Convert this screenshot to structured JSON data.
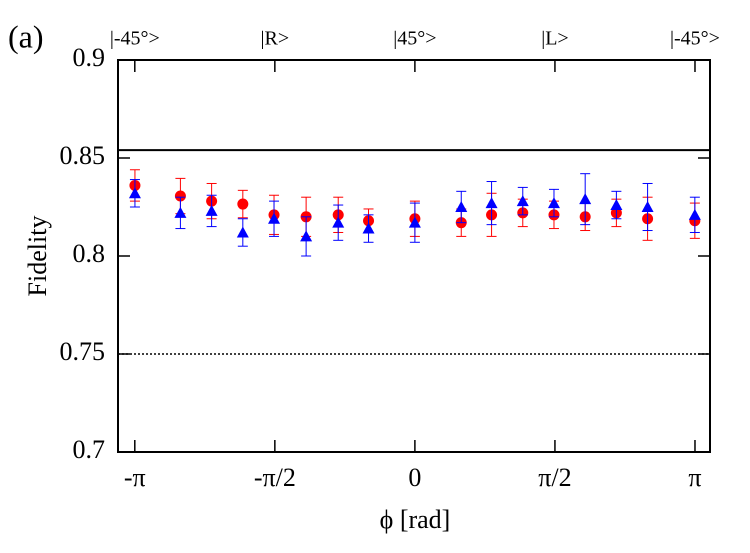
{
  "chart_data": {
    "type": "scatter",
    "panel_label": "(a)",
    "xlabel": "ϕ  [rad]",
    "ylabel": "Fidelity",
    "xlim": [
      -3.33,
      3.31
    ],
    "ylim": [
      0.7,
      0.9
    ],
    "xticks": [
      {
        "value": -3.1416,
        "label": "-π"
      },
      {
        "value": -1.5708,
        "label": "-π/2"
      },
      0,
      {
        "value": 1.5708,
        "label": "π/2"
      },
      {
        "value": 3.1416,
        "label": "π"
      }
    ],
    "x2ticks": [
      {
        "value": -3.1416,
        "label": "|-45°>"
      },
      {
        "value": -1.5708,
        "label": "|R>"
      },
      {
        "value": 0,
        "label": "|45°>"
      },
      {
        "value": 1.5708,
        "label": "|L>"
      },
      {
        "value": 3.1416,
        "label": "|-45°>"
      }
    ],
    "yticks": [
      0.7,
      0.75,
      0.8,
      0.85,
      0.9
    ],
    "hlines": [
      {
        "value": 0.854,
        "style": "solid"
      },
      {
        "value": 0.75,
        "style": "dotted"
      }
    ],
    "series": [
      {
        "marker": "circle",
        "color": "#ff0000",
        "x": [
          -3.14,
          -2.63,
          -2.28,
          -1.93,
          -1.58,
          -1.22,
          -0.86,
          -0.52,
          0,
          0.52,
          0.86,
          1.21,
          1.56,
          1.91,
          2.26,
          2.61,
          3.14
        ],
        "values": [
          0.836,
          0.8306,
          0.828,
          0.8265,
          0.821,
          0.82,
          0.821,
          0.818,
          0.819,
          0.817,
          0.821,
          0.822,
          0.821,
          0.82,
          0.822,
          0.819,
          0.818
        ],
        "errors": [
          0.008,
          0.009,
          0.009,
          0.007,
          0.01,
          0.01,
          0.009,
          0.006,
          0.009,
          0.007,
          0.011,
          0.007,
          0.007,
          0.007,
          0.007,
          0.011,
          0.009
        ]
      },
      {
        "marker": "triangle",
        "color": "#0000ff",
        "x": [
          -3.14,
          -2.63,
          -2.28,
          -1.93,
          -1.58,
          -1.22,
          -0.86,
          -0.52,
          0,
          0.52,
          0.86,
          1.21,
          1.56,
          1.91,
          2.26,
          2.61,
          3.14
        ],
        "values": [
          0.832,
          0.822,
          0.823,
          0.812,
          0.819,
          0.81,
          0.817,
          0.814,
          0.817,
          0.825,
          0.827,
          0.828,
          0.827,
          0.829,
          0.826,
          0.825,
          0.821
        ],
        "errors": [
          0.007,
          0.008,
          0.008,
          0.007,
          0.009,
          0.01,
          0.009,
          0.007,
          0.01,
          0.008,
          0.011,
          0.007,
          0.007,
          0.013,
          0.007,
          0.012,
          0.009
        ]
      }
    ]
  }
}
